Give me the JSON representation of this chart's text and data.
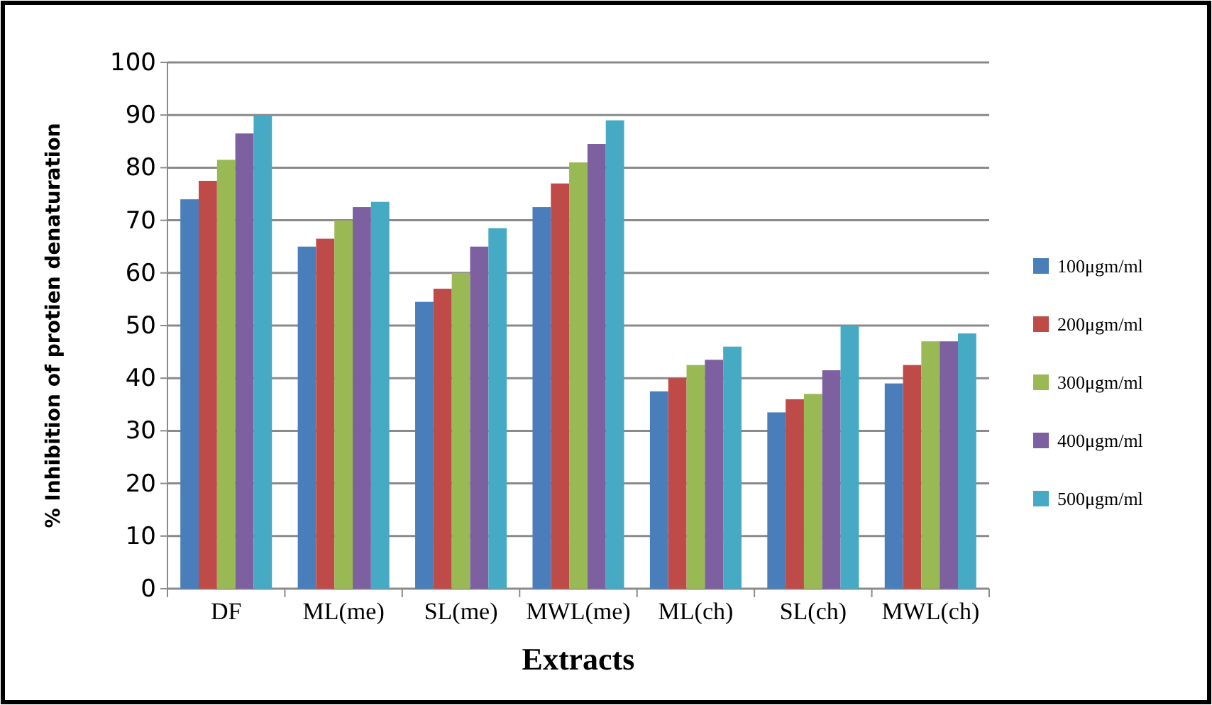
{
  "chart_data": {
    "type": "bar",
    "xlabel": "Extracts",
    "ylabel": "% Inhibition of protien denaturation",
    "categories": [
      "DF",
      "ML(me)",
      "SL(me)",
      "MWL(me)",
      "ML(ch)",
      "SL(ch)",
      "MWL(ch)"
    ],
    "series": [
      {
        "name": "100μgm/ml",
        "color": "#4a7ebb",
        "values": [
          74,
          65,
          54.5,
          72.5,
          37.5,
          33.5,
          39
        ]
      },
      {
        "name": "200μgm/ml",
        "color": "#be4b48",
        "values": [
          77.5,
          66.5,
          57,
          77,
          40,
          36,
          42.5
        ]
      },
      {
        "name": "300μgm/ml",
        "color": "#98b954",
        "values": [
          81.5,
          70,
          60,
          81,
          42.5,
          37,
          47
        ]
      },
      {
        "name": "400μgm/ml",
        "color": "#7d60a0",
        "values": [
          86.5,
          72.5,
          65,
          84.5,
          43.5,
          41.5,
          47
        ]
      },
      {
        "name": "500μgm/ml",
        "color": "#46aac5",
        "values": [
          90,
          73.5,
          68.5,
          89,
          46,
          50,
          48.5
        ]
      }
    ],
    "ylim": [
      0,
      100
    ],
    "yticks": [
      0,
      10,
      20,
      30,
      40,
      50,
      60,
      70,
      80,
      90,
      100
    ],
    "grid": "y",
    "legend": "right"
  }
}
